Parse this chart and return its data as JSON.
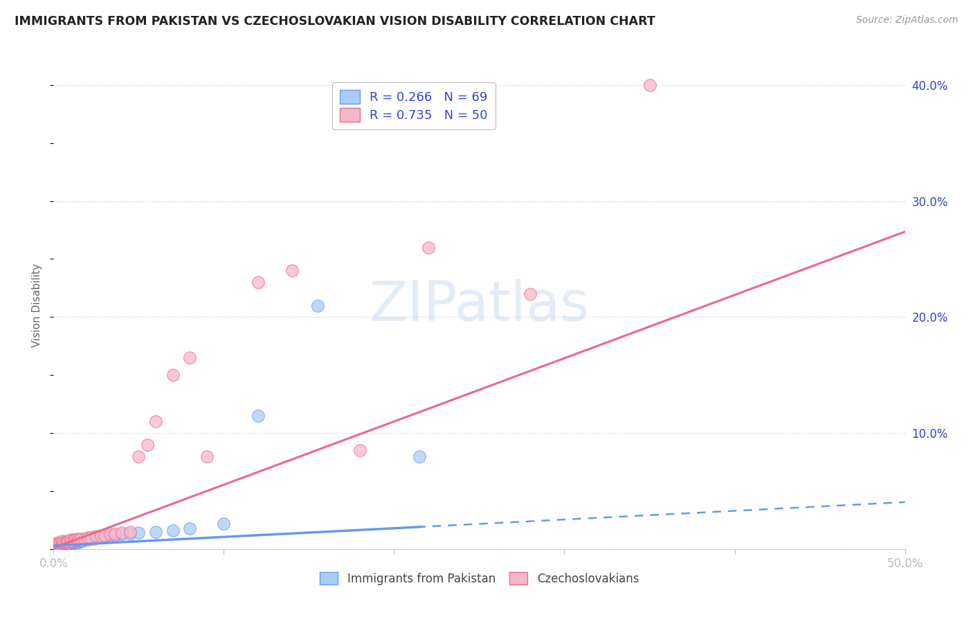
{
  "title": "IMMIGRANTS FROM PAKISTAN VS CZECHOSLOVAKIAN VISION DISABILITY CORRELATION CHART",
  "source": "Source: ZipAtlas.com",
  "ylabel": "Vision Disability",
  "xlim": [
    0,
    0.5
  ],
  "ylim": [
    0,
    0.42
  ],
  "xticks": [
    0.0,
    0.1,
    0.2,
    0.3,
    0.4,
    0.5
  ],
  "xtick_labels": [
    "0.0%",
    "",
    "",
    "",
    "",
    "50.0%"
  ],
  "ytick_labels_right": [
    "",
    "10.0%",
    "20.0%",
    "30.0%",
    "40.0%"
  ],
  "yticks_right": [
    0.0,
    0.1,
    0.2,
    0.3,
    0.4
  ],
  "grid_color": "#cccccc",
  "background_color": "#ffffff",
  "series1_color": "#aaccf8",
  "series1_edge": "#6699ee",
  "series1_label": "Immigrants from Pakistan",
  "series1_R": "0.266",
  "series1_N": "69",
  "series2_color": "#f8b8cc",
  "series2_edge": "#ee6688",
  "series2_label": "Czechoslovakians",
  "series2_R": "0.735",
  "series2_N": "50",
  "legend_text_color": "#3344cc",
  "watermark_color": "#c8d8f0",
  "blue_line_intercept": 0.003,
  "blue_line_slope": 0.075,
  "blue_line_solid_end": 0.215,
  "pink_line_intercept": 0.001,
  "pink_line_slope": 0.545,
  "blue_points_x": [
    0.001,
    0.001,
    0.001,
    0.001,
    0.002,
    0.002,
    0.002,
    0.002,
    0.003,
    0.003,
    0.003,
    0.003,
    0.004,
    0.004,
    0.004,
    0.004,
    0.005,
    0.005,
    0.005,
    0.005,
    0.005,
    0.006,
    0.006,
    0.006,
    0.007,
    0.007,
    0.007,
    0.007,
    0.008,
    0.008,
    0.008,
    0.009,
    0.009,
    0.009,
    0.01,
    0.01,
    0.01,
    0.011,
    0.011,
    0.012,
    0.012,
    0.013,
    0.013,
    0.014,
    0.014,
    0.015,
    0.015,
    0.016,
    0.017,
    0.018,
    0.019,
    0.02,
    0.022,
    0.024,
    0.026,
    0.028,
    0.03,
    0.033,
    0.036,
    0.04,
    0.045,
    0.05,
    0.06,
    0.07,
    0.08,
    0.1,
    0.12,
    0.155,
    0.215
  ],
  "blue_points_y": [
    0.001,
    0.002,
    0.003,
    0.004,
    0.001,
    0.002,
    0.003,
    0.004,
    0.002,
    0.003,
    0.004,
    0.005,
    0.002,
    0.003,
    0.004,
    0.005,
    0.002,
    0.003,
    0.004,
    0.005,
    0.006,
    0.003,
    0.004,
    0.005,
    0.003,
    0.004,
    0.005,
    0.006,
    0.004,
    0.005,
    0.006,
    0.004,
    0.005,
    0.006,
    0.004,
    0.005,
    0.006,
    0.005,
    0.006,
    0.005,
    0.006,
    0.006,
    0.007,
    0.006,
    0.007,
    0.006,
    0.007,
    0.007,
    0.007,
    0.008,
    0.008,
    0.008,
    0.009,
    0.009,
    0.01,
    0.01,
    0.01,
    0.011,
    0.012,
    0.013,
    0.013,
    0.014,
    0.015,
    0.016,
    0.018,
    0.022,
    0.115,
    0.21,
    0.08
  ],
  "pink_points_x": [
    0.001,
    0.001,
    0.002,
    0.002,
    0.003,
    0.003,
    0.003,
    0.004,
    0.004,
    0.005,
    0.005,
    0.005,
    0.006,
    0.006,
    0.007,
    0.007,
    0.008,
    0.008,
    0.009,
    0.009,
    0.01,
    0.01,
    0.011,
    0.012,
    0.013,
    0.014,
    0.015,
    0.016,
    0.018,
    0.02,
    0.022,
    0.025,
    0.028,
    0.03,
    0.033,
    0.036,
    0.04,
    0.045,
    0.05,
    0.055,
    0.06,
    0.07,
    0.08,
    0.09,
    0.12,
    0.14,
    0.18,
    0.22,
    0.28,
    0.35
  ],
  "pink_points_y": [
    0.003,
    0.004,
    0.003,
    0.005,
    0.003,
    0.004,
    0.006,
    0.004,
    0.005,
    0.004,
    0.005,
    0.007,
    0.005,
    0.006,
    0.005,
    0.006,
    0.006,
    0.007,
    0.006,
    0.007,
    0.007,
    0.008,
    0.007,
    0.008,
    0.008,
    0.009,
    0.008,
    0.009,
    0.009,
    0.01,
    0.01,
    0.011,
    0.011,
    0.012,
    0.013,
    0.013,
    0.014,
    0.015,
    0.08,
    0.09,
    0.11,
    0.15,
    0.165,
    0.08,
    0.23,
    0.24,
    0.085,
    0.26,
    0.22,
    0.4
  ]
}
